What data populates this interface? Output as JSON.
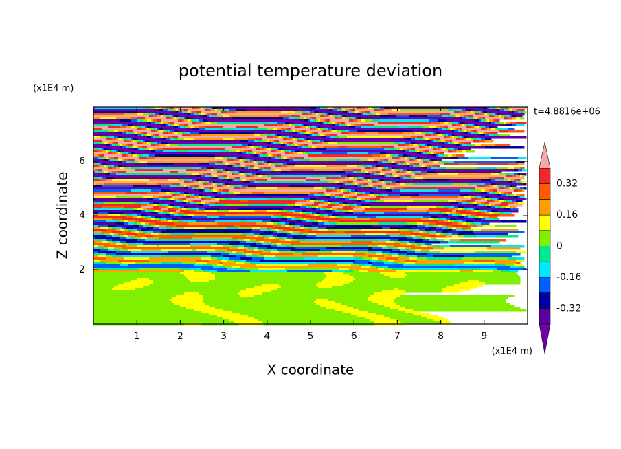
{
  "chart_data": {
    "type": "contour",
    "title": "potential temperature deviation",
    "x_label": "X coordinate",
    "y_label": "Z coordinate",
    "x_unit": "(x1E4 m)",
    "y_unit": "(x1E4 m)",
    "time_label": "t=4.8816e+06",
    "xlim": [
      0,
      10
    ],
    "ylim": [
      0,
      8
    ],
    "xticks": [
      1,
      2,
      3,
      4,
      5,
      6,
      7,
      8,
      9
    ],
    "yticks": [
      2,
      4,
      6
    ],
    "levels": [
      -0.4,
      -0.32,
      -0.24,
      -0.16,
      -0.08,
      0,
      0.08,
      0.16,
      0.24,
      0.32,
      0.4
    ],
    "colors": [
      "#7000a8",
      "#5a00a0",
      "#0000a0",
      "#0060ff",
      "#00e8ff",
      "#00e890",
      "#80f000",
      "#ffff00",
      "#ffa000",
      "#ff5a00",
      "#f02828",
      "#f4a8a8"
    ],
    "colorbar_ticks": [
      -0.32,
      -0.16,
      0,
      0.16,
      0.32
    ]
  }
}
